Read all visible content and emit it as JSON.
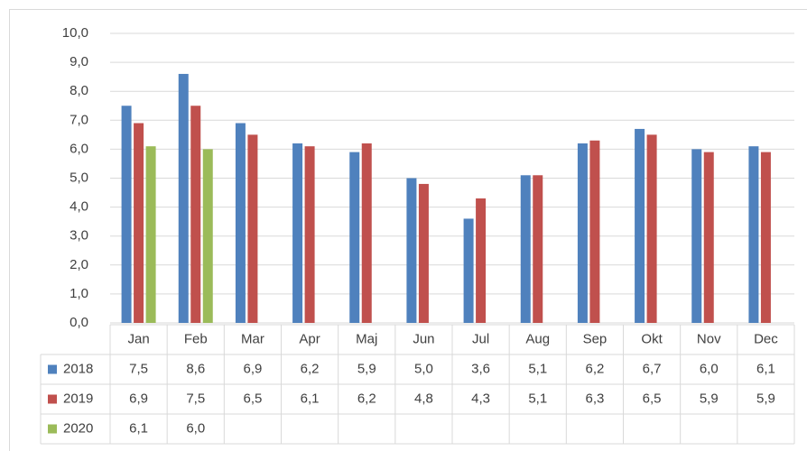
{
  "chart_data": {
    "type": "bar",
    "categories": [
      "Jan",
      "Feb",
      "Mar",
      "Apr",
      "Maj",
      "Jun",
      "Jul",
      "Aug",
      "Sep",
      "Okt",
      "Nov",
      "Dec"
    ],
    "series": [
      {
        "name": "2018",
        "color": "#4f81bd",
        "values": [
          7.5,
          8.6,
          6.9,
          6.2,
          5.9,
          5.0,
          3.6,
          5.1,
          6.2,
          6.7,
          6.0,
          6.1
        ],
        "value_labels": [
          "7,5",
          "8,6",
          "6,9",
          "6,2",
          "5,9",
          "5,0",
          "3,6",
          "5,1",
          "6,2",
          "6,7",
          "6,0",
          "6,1"
        ]
      },
      {
        "name": "2019",
        "color": "#c0504d",
        "values": [
          6.9,
          7.5,
          6.5,
          6.1,
          6.2,
          4.8,
          4.3,
          5.1,
          6.3,
          6.5,
          5.9,
          5.9
        ],
        "value_labels": [
          "6,9",
          "7,5",
          "6,5",
          "6,1",
          "6,2",
          "4,8",
          "4,3",
          "5,1",
          "6,3",
          "6,5",
          "5,9",
          "5,9"
        ]
      },
      {
        "name": "2020",
        "color": "#9bbb59",
        "values": [
          6.1,
          6.0,
          null,
          null,
          null,
          null,
          null,
          null,
          null,
          null,
          null,
          null
        ],
        "value_labels": [
          "6,1",
          "6,0",
          null,
          null,
          null,
          null,
          null,
          null,
          null,
          null,
          null,
          null
        ]
      }
    ],
    "ylim": [
      0,
      10
    ],
    "yticks": [
      {
        "value": 0,
        "label": "0,0"
      },
      {
        "value": 1,
        "label": "1,0"
      },
      {
        "value": 2,
        "label": "2,0"
      },
      {
        "value": 3,
        "label": "3,0"
      },
      {
        "value": 4,
        "label": "4,0"
      },
      {
        "value": 5,
        "label": "5,0"
      },
      {
        "value": 6,
        "label": "6,0"
      },
      {
        "value": 7,
        "label": "7,0"
      },
      {
        "value": 8,
        "label": "8,0"
      },
      {
        "value": 9,
        "label": "9,0"
      },
      {
        "value": 10,
        "label": "10,0"
      }
    ],
    "grid": true
  }
}
